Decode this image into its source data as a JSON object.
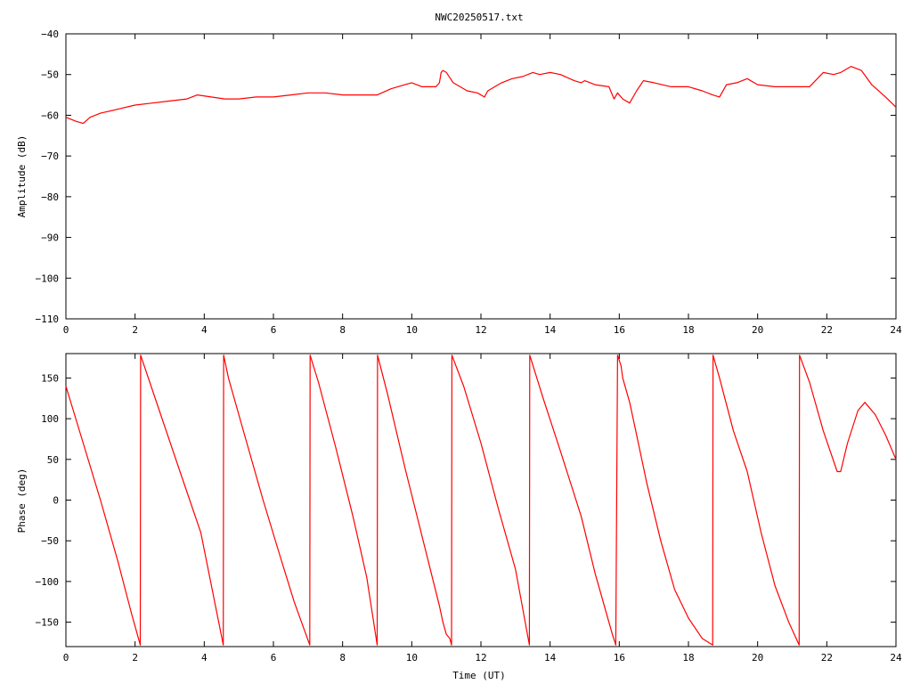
{
  "title": "NWC20250517.txt",
  "colors": {
    "series": "#ff0000",
    "axis": "#000000",
    "background": "#ffffff"
  },
  "chart_data": [
    {
      "type": "line",
      "panel": "amplitude",
      "title": "NWC20250517.txt",
      "xlabel": "",
      "ylabel": "Amplitude (dB)",
      "xlim": [
        0,
        24
      ],
      "ylim": [
        -110,
        -40
      ],
      "grid": false,
      "xticks": [
        0,
        2,
        4,
        6,
        8,
        10,
        12,
        14,
        16,
        18,
        20,
        22,
        24
      ],
      "yticks": [
        -110,
        -100,
        -90,
        -80,
        -70,
        -60,
        -50,
        -40
      ],
      "xtick_labels": [
        "0",
        "2",
        "4",
        "6",
        "8",
        "10",
        "12",
        "14",
        "16",
        "18",
        "20",
        "22",
        "24"
      ],
      "ytick_labels": [
        "−110",
        "−100",
        "−90",
        "−80",
        "−70",
        "−60",
        "−50",
        "−40"
      ],
      "series": [
        {
          "x": [
            0,
            0.3,
            0.5,
            0.7,
            1.0,
            1.5,
            2.0,
            2.5,
            3.0,
            3.5,
            3.8,
            4.2,
            4.6,
            5.0,
            5.5,
            6.0,
            6.5,
            7.0,
            7.5,
            8.0,
            8.5,
            9.0,
            9.4,
            9.8,
            10.0,
            10.3,
            10.7,
            10.8,
            10.85,
            10.9,
            11.0,
            11.2,
            11.4,
            11.6,
            11.9,
            12.1,
            12.2,
            12.4,
            12.6,
            12.9,
            13.2,
            13.5,
            13.7,
            14.0,
            14.3,
            14.7,
            14.9,
            15.0,
            15.3,
            15.7,
            15.85,
            15.95,
            16.1,
            16.3,
            16.5,
            16.7,
            17.0,
            17.5,
            18.0,
            18.4,
            18.7,
            18.9,
            19.1,
            19.4,
            19.7,
            20.0,
            20.5,
            21.0,
            21.5,
            21.9,
            22.2,
            22.4,
            22.7,
            23.0,
            23.3,
            23.7,
            24.0
          ],
          "y": [
            -60.5,
            -61.5,
            -62,
            -60.5,
            -59.5,
            -58.5,
            -57.5,
            -57,
            -56.5,
            -56,
            -55,
            -55.5,
            -56,
            -56,
            -55.5,
            -55.5,
            -55,
            -54.5,
            -54.5,
            -55,
            -55,
            -55,
            -53.5,
            -52.5,
            -52,
            -53,
            -53,
            -52,
            -49.5,
            -49,
            -49.5,
            -52,
            -53,
            -54,
            -54.5,
            -55.5,
            -54,
            -53,
            -52,
            -51,
            -50.5,
            -49.5,
            -50,
            -49.5,
            -50,
            -51.5,
            -52,
            -51.5,
            -52.5,
            -53,
            -56,
            -54.5,
            -56,
            -57,
            -54,
            -51.5,
            -52,
            -53,
            -53,
            -54,
            -55,
            -55.5,
            -52.5,
            -52,
            -51,
            -52.5,
            -53,
            -53,
            -53,
            -49.5,
            -50,
            -49.5,
            -48,
            -49,
            -52.5,
            -55.5,
            -58
          ]
        }
      ]
    },
    {
      "type": "line",
      "panel": "phase",
      "title": "",
      "xlabel": "Time (UT)",
      "ylabel": "Phase (deg)",
      "xlim": [
        0,
        24
      ],
      "ylim": [
        -180,
        180
      ],
      "grid": false,
      "xticks": [
        0,
        2,
        4,
        6,
        8,
        10,
        12,
        14,
        16,
        18,
        20,
        22,
        24
      ],
      "yticks": [
        -150,
        -100,
        -50,
        0,
        50,
        100,
        150
      ],
      "xtick_labels": [
        "0",
        "2",
        "4",
        "6",
        "8",
        "10",
        "12",
        "14",
        "16",
        "18",
        "20",
        "22",
        "24"
      ],
      "ytick_labels": [
        "−150",
        "−100",
        "−50",
        "0",
        "50",
        "100",
        "150"
      ],
      "series": [
        {
          "x": [
            0,
            0.5,
            1.0,
            1.5,
            1.9,
            2.15,
            2.16,
            2.7,
            3.3,
            3.9,
            4.55,
            4.56,
            4.7,
            5.2,
            5.7,
            6.2,
            6.6,
            7.05,
            7.06,
            7.3,
            7.8,
            8.3,
            8.7,
            9.0,
            9.01,
            9.3,
            9.8,
            10.3,
            10.8,
            10.9,
            11.0,
            11.1,
            11.15,
            11.16,
            11.5,
            12.0,
            12.5,
            13.0,
            13.4,
            13.41,
            13.8,
            14.3,
            14.9,
            15.3,
            15.8,
            15.9,
            15.95,
            16.05,
            16.1,
            16.3,
            16.5,
            16.8,
            17.2,
            17.6,
            18.0,
            18.4,
            18.7,
            18.71,
            18.9,
            19.3,
            19.7,
            20.1,
            20.5,
            20.9,
            21.2,
            21.21,
            21.5,
            21.9,
            22.3,
            22.4,
            22.6,
            22.9,
            23.1,
            23.4,
            23.7,
            24.0
          ],
          "y": [
            140,
            70,
            0,
            -75,
            -140,
            -178,
            178,
            110,
            35,
            -40,
            -178,
            178,
            150,
            75,
            0,
            -70,
            -125,
            -178,
            178,
            145,
            65,
            -20,
            -95,
            -178,
            178,
            130,
            40,
            -45,
            -130,
            -150,
            -165,
            -170,
            -178,
            178,
            140,
            70,
            -10,
            -85,
            -178,
            178,
            125,
            60,
            -20,
            -90,
            -165,
            -178,
            178,
            165,
            150,
            120,
            80,
            20,
            -50,
            -110,
            -145,
            -170,
            -178,
            178,
            150,
            85,
            35,
            -40,
            -105,
            -150,
            -178,
            178,
            145,
            85,
            35,
            35,
            70,
            110,
            120,
            105,
            80,
            50
          ]
        }
      ]
    }
  ]
}
